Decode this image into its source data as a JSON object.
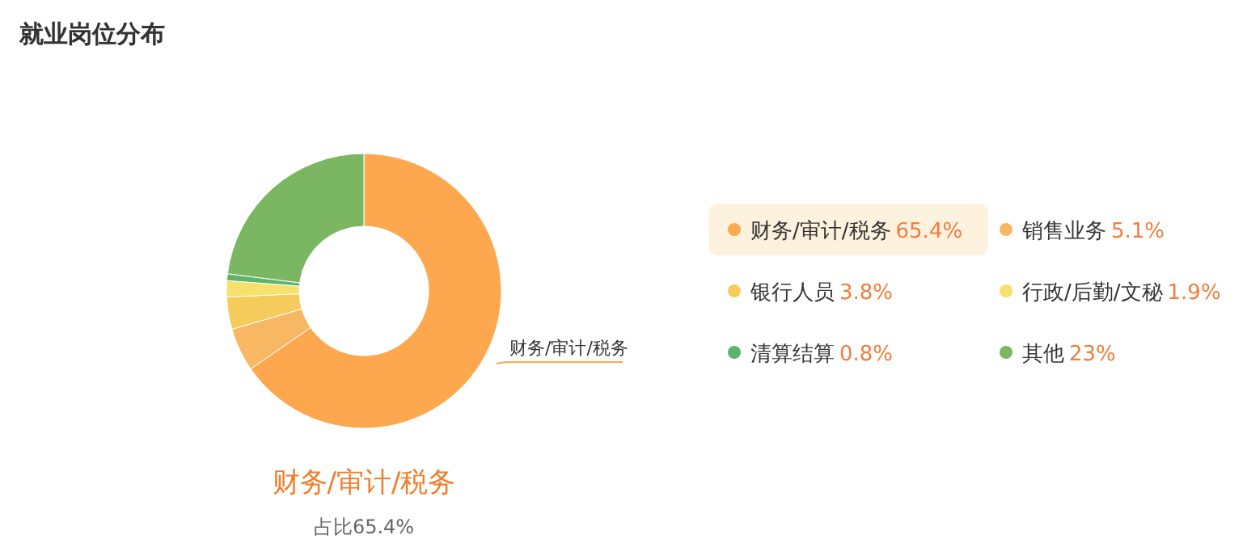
{
  "chart_data": {
    "type": "donut",
    "title": "就业岗位分布",
    "categories": [
      "财务/审计/税务",
      "销售业务",
      "银行人员",
      "行政/后勤/文秘",
      "清算结算",
      "其他"
    ],
    "values": [
      65.4,
      5.1,
      3.8,
      1.9,
      0.8,
      23
    ],
    "colors": [
      "#fda84f",
      "#f8b763",
      "#f5cb5c",
      "#f7e06b",
      "#5db46b",
      "#7bb662"
    ],
    "value_labels": [
      "65.4%",
      "5.1%",
      "3.8%",
      "1.9%",
      "0.8%",
      "23%"
    ],
    "legend": "right",
    "annotations": [
      "财务/审计/税务",
      "占比65.4%"
    ]
  }
}
